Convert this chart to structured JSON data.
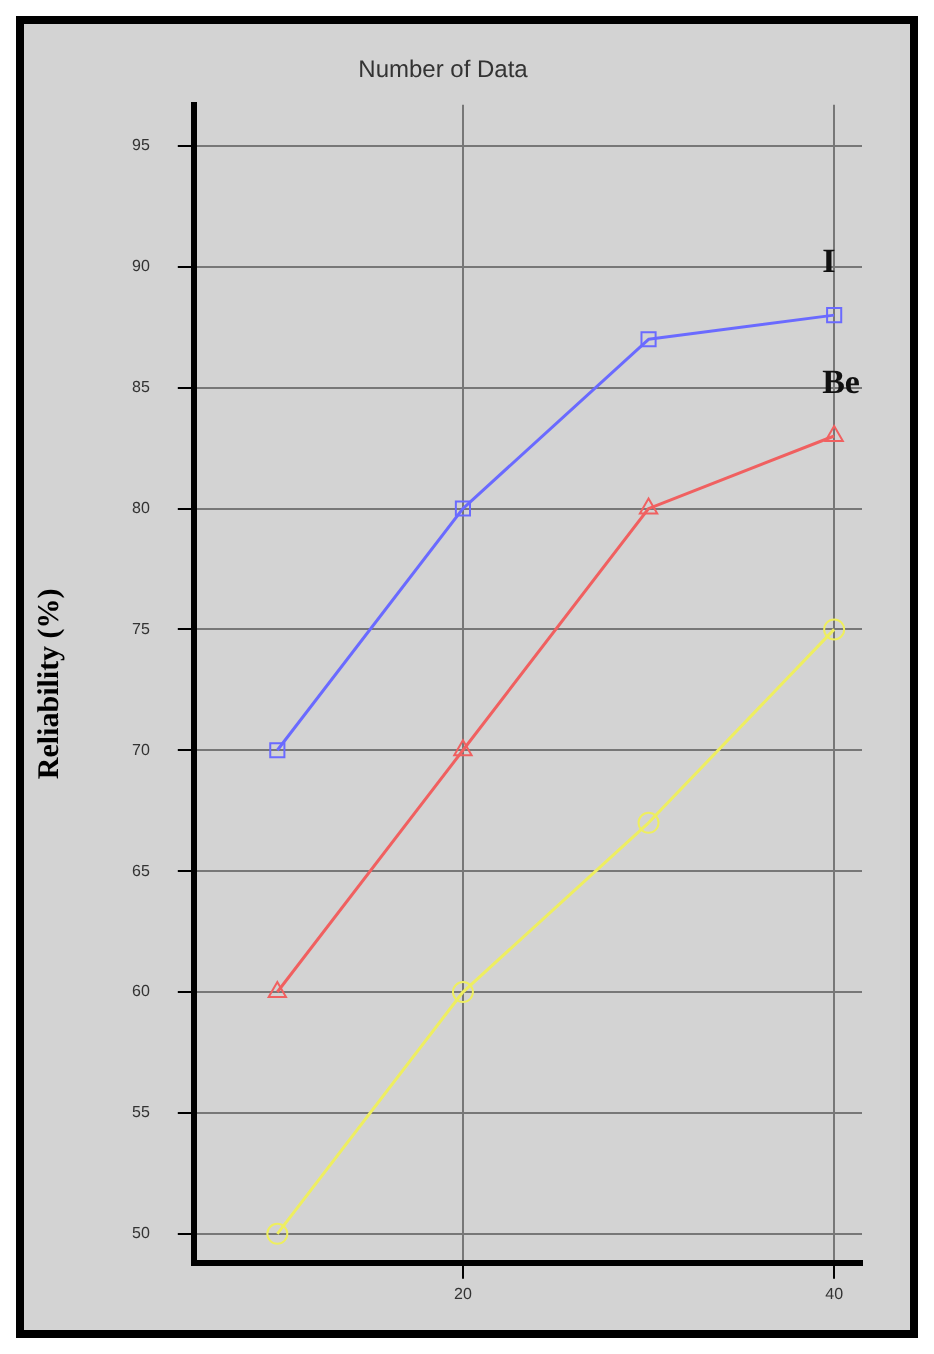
{
  "chart_data": {
    "type": "line",
    "title": "Number of Data",
    "ylabel": "Reliability (%)",
    "x": [
      10,
      20,
      30,
      40
    ],
    "series": [
      {
        "color": "#6a6aff",
        "values": [
          70,
          80,
          87,
          88
        ],
        "marker": "square"
      },
      {
        "color": "#f06060",
        "values": [
          60,
          70,
          80,
          83
        ],
        "marker": "triangle"
      },
      {
        "color": "#eeee60",
        "values": [
          50,
          60,
          67,
          75
        ],
        "marker": "circle"
      }
    ],
    "xlim": [
      5.5,
      41.5
    ],
    "xticks": [
      20,
      40
    ],
    "ylim": [
      48.8,
      96.7
    ],
    "yticks": [
      50,
      55,
      60,
      65,
      70,
      75,
      80,
      85,
      90,
      95
    ],
    "grid": true,
    "legend": false,
    "line_style": "solid",
    "annotations": [
      "I",
      "Be"
    ]
  }
}
